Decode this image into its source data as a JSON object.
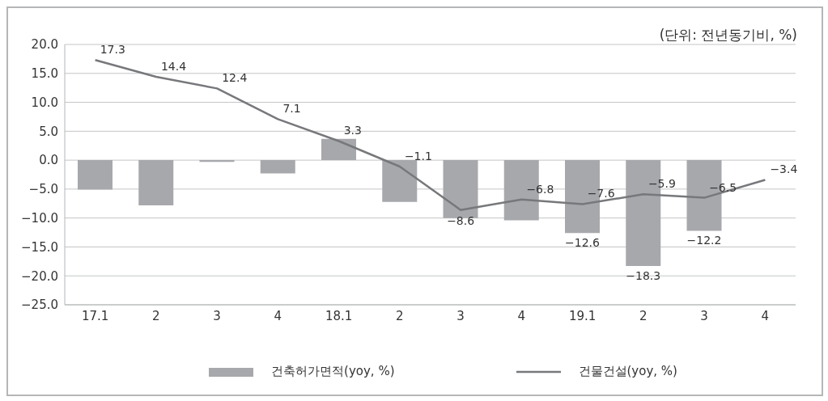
{
  "chart_data": {
    "type": "bar",
    "annotations": [
      "(단위: 전년동기비, %)"
    ],
    "categories": [
      "17.1",
      "2",
      "3",
      "4",
      "18.1",
      "2",
      "3",
      "4",
      "19.1",
      "2",
      "3",
      "4"
    ],
    "series": [
      {
        "name": "건축허가면적(yoy, %)",
        "color": "#a7a8ac",
        "values": [
          -5.1,
          -7.8,
          -0.3,
          -2.3,
          3.7,
          -7.2,
          -10.0,
          -10.4,
          -12.6,
          -18.3,
          -12.2,
          null
        ],
        "value_labels": [
          null,
          null,
          null,
          null,
          null,
          null,
          null,
          null,
          "−12.6",
          "−18.3",
          "−12.2",
          null
        ]
      },
      {
        "name": "건물건설(yoy, %)",
        "type": "line",
        "color": "#77787b",
        "values": [
          17.3,
          14.4,
          12.4,
          7.1,
          3.3,
          -1.1,
          -8.6,
          -6.8,
          -7.6,
          -5.9,
          -6.5,
          -3.4
        ],
        "value_labels": [
          "17.3",
          "14.4",
          "12.4",
          "7.1",
          "3.3",
          "−1.1",
          "−8.6",
          "−6.8",
          "−7.6",
          "−5.9",
          "−6.5",
          "−3.4"
        ]
      }
    ],
    "ylim": [
      -25,
      20
    ],
    "yticks": [
      {
        "value": 20,
        "label": "20.0"
      },
      {
        "value": 15,
        "label": "15.0"
      },
      {
        "value": 10,
        "label": "10.0"
      },
      {
        "value": 5,
        "label": "5.0"
      },
      {
        "value": 0,
        "label": "0.0"
      },
      {
        "value": -5,
        "label": "−5.0"
      },
      {
        "value": -10,
        "label": "−10.0"
      },
      {
        "value": -15,
        "label": "−15.0"
      },
      {
        "value": -20,
        "label": "−20.0"
      },
      {
        "value": -25,
        "label": "−25.0"
      }
    ],
    "grid": "y",
    "legend": "bottom",
    "marker": "none",
    "line_style": "solid"
  }
}
